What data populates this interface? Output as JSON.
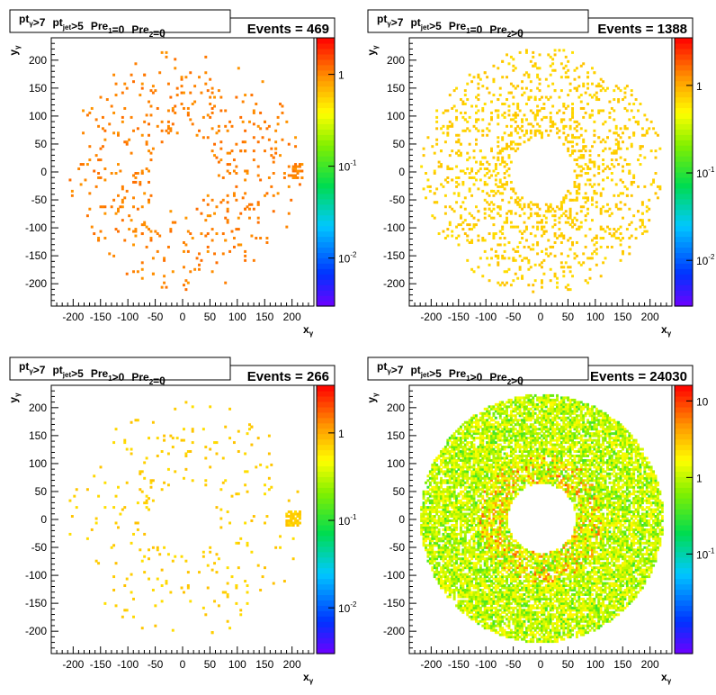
{
  "chart_data": [
    {
      "type": "heatmap",
      "title_parts": {
        "a": "pt",
        "a_sub": "γ",
        "b": ">7",
        "c": "pt",
        "c_sub": "jet",
        "d": ">5",
        "e": "Pre",
        "e_sub": "1",
        "f": "=0",
        "g": "Pre",
        "g_sub": "2",
        "h": "=0"
      },
      "stats": "Events = 469",
      "xlabel": "x",
      "xlabel_sub": "γ",
      "ylabel": "y",
      "ylabel_sub": "γ",
      "xlim": [
        -240,
        240
      ],
      "ylim": [
        -240,
        240
      ],
      "xticks": [
        -200,
        -150,
        -100,
        -50,
        0,
        50,
        100,
        150,
        200
      ],
      "yticks": [
        -200,
        -150,
        -100,
        -50,
        0,
        50,
        100,
        150,
        200
      ],
      "zscale": "log",
      "zlim": [
        0.003,
        2.5
      ],
      "zticks": [
        {
          "v": 1,
          "base": "1",
          "exp": ""
        },
        {
          "v": 0.1,
          "base": "10",
          "exp": "-1"
        },
        {
          "v": 0.01,
          "base": "10",
          "exp": "-2"
        }
      ],
      "points": {
        "count": 469,
        "rmin": 62,
        "rmax": 215,
        "weight": 1,
        "seed": 11,
        "clusters": [
          {
            "x": 205,
            "y": 0,
            "n": 30,
            "spread": 12
          }
        ]
      }
    },
    {
      "type": "heatmap",
      "title_parts": {
        "a": "pt",
        "a_sub": "γ",
        "b": ">7",
        "c": "pt",
        "c_sub": "jet",
        "d": ">5",
        "e": "Pre",
        "e_sub": "1",
        "f": "=0",
        "g": "Pre",
        "g_sub": "2",
        "h": ">0"
      },
      "stats": "Events = 1388",
      "xlabel": "x",
      "xlabel_sub": "γ",
      "ylabel": "y",
      "ylabel_sub": "γ",
      "xlim": [
        -240,
        240
      ],
      "ylim": [
        -240,
        240
      ],
      "xticks": [
        -200,
        -150,
        -100,
        -50,
        0,
        50,
        100,
        150,
        200
      ],
      "yticks": [
        -200,
        -150,
        -100,
        -50,
        0,
        50,
        100,
        150,
        200
      ],
      "zscale": "log",
      "zlim": [
        0.003,
        3.5
      ],
      "zticks": [
        {
          "v": 1,
          "base": "1",
          "exp": ""
        },
        {
          "v": 0.1,
          "base": "10",
          "exp": "-1"
        },
        {
          "v": 0.01,
          "base": "10",
          "exp": "-2"
        }
      ],
      "points": {
        "count": 1388,
        "rmin": 60,
        "rmax": 220,
        "weight": 0.7,
        "seed": 23,
        "clusters": []
      }
    },
    {
      "type": "heatmap",
      "title_parts": {
        "a": "pt",
        "a_sub": "γ",
        "b": ">7",
        "c": "pt",
        "c_sub": "jet",
        "d": ">5",
        "e": "Pre",
        "e_sub": "1",
        "f": ">0",
        "g": "Pre",
        "g_sub": "2",
        "h": "=0"
      },
      "stats": "Events = 266",
      "xlabel": "x",
      "xlabel_sub": "γ",
      "ylabel": "y",
      "ylabel_sub": "γ",
      "xlim": [
        -240,
        240
      ],
      "ylim": [
        -240,
        240
      ],
      "xticks": [
        -200,
        -150,
        -100,
        -50,
        0,
        50,
        100,
        150,
        200
      ],
      "yticks": [
        -200,
        -150,
        -100,
        -50,
        0,
        50,
        100,
        150,
        200
      ],
      "zscale": "log",
      "zlim": [
        0.003,
        3.5
      ],
      "zticks": [
        {
          "v": 1,
          "base": "1",
          "exp": ""
        },
        {
          "v": 0.1,
          "base": "10",
          "exp": "-1"
        },
        {
          "v": 0.01,
          "base": "10",
          "exp": "-2"
        }
      ],
      "points": {
        "count": 266,
        "rmin": 62,
        "rmax": 215,
        "weight": 0.7,
        "seed": 37,
        "clusters": [
          {
            "x": 200,
            "y": 0,
            "n": 60,
            "spread": 13
          }
        ]
      }
    },
    {
      "type": "heatmap",
      "title_parts": {
        "a": "pt",
        "a_sub": "γ",
        "b": ">7",
        "c": "pt",
        "c_sub": "jet",
        "d": ">5",
        "e": "Pre",
        "e_sub": "1",
        "f": ">0",
        "g": "Pre",
        "g_sub": "2",
        "h": ">0"
      },
      "stats": "Events = 24030",
      "xlabel": "x",
      "xlabel_sub": "γ",
      "ylabel": "y",
      "ylabel_sub": "γ",
      "xlim": [
        -240,
        240
      ],
      "ylim": [
        -240,
        240
      ],
      "xticks": [
        -200,
        -150,
        -100,
        -50,
        0,
        50,
        100,
        150,
        200
      ],
      "yticks": [
        -200,
        -150,
        -100,
        -50,
        0,
        50,
        100,
        150,
        200
      ],
      "zscale": "log",
      "zlim": [
        0.005,
        16
      ],
      "zticks": [
        {
          "v": 10,
          "base": "10",
          "exp": ""
        },
        {
          "v": 1,
          "base": "1",
          "exp": ""
        },
        {
          "v": 0.1,
          "base": "10",
          "exp": "-1"
        }
      ],
      "points": {
        "count": 4200,
        "rmin": 62,
        "rmax": 222,
        "weight": 1,
        "seed": 51,
        "dense": true,
        "clusters": []
      }
    }
  ]
}
